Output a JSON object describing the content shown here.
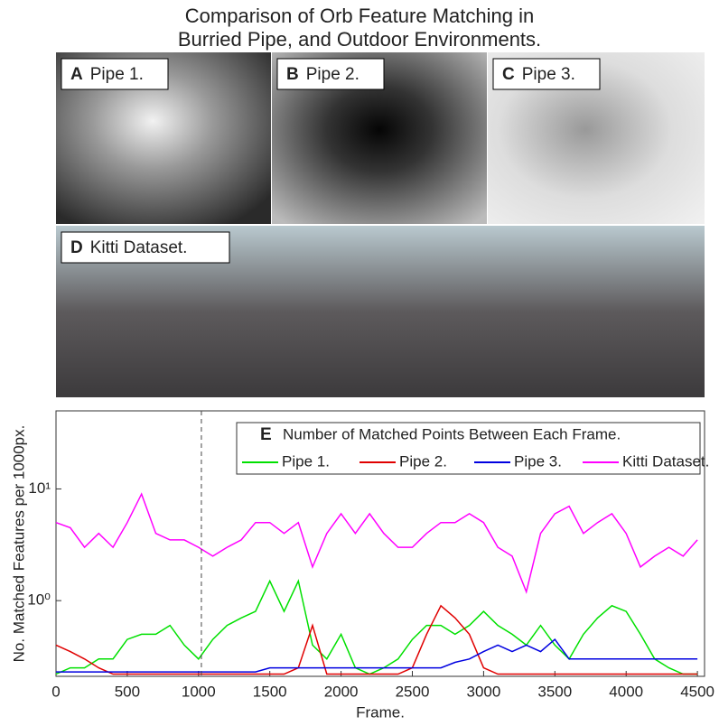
{
  "title": [
    "Comparison of Orb Feature Matching in",
    "Burried Pipe, and Outdoor Environments."
  ],
  "panels": [
    {
      "letter": "A",
      "label": "Pipe 1."
    },
    {
      "letter": "B",
      "label": "Pipe 2."
    },
    {
      "letter": "C",
      "label": "Pipe 3."
    },
    {
      "letter": "D",
      "label": "Kitti Dataset."
    }
  ],
  "chart_data": {
    "type": "line",
    "panel_letter": "E",
    "legend_title": "Number of Matched Points Between Each Frame.",
    "x_label": "Frame.",
    "y_label": "No. Matched Features per 1000px.",
    "x": [
      0,
      100,
      200,
      300,
      400,
      500,
      600,
      700,
      800,
      900,
      1000,
      1100,
      1200,
      1300,
      1400,
      1500,
      1600,
      1700,
      1800,
      1900,
      2000,
      2100,
      2200,
      2300,
      2400,
      2500,
      2600,
      2700,
      2800,
      2900,
      3000,
      3100,
      3200,
      3300,
      3400,
      3500,
      3600,
      3700,
      3800,
      3900,
      4000,
      4100,
      4200,
      4300,
      4400,
      4500
    ],
    "series": [
      {
        "name": "Pipe 1.",
        "color": "#00e000",
        "values": [
          0.22,
          0.25,
          0.25,
          0.3,
          0.3,
          0.45,
          0.5,
          0.5,
          0.6,
          0.4,
          0.3,
          0.45,
          0.6,
          0.7,
          0.8,
          1.5,
          0.8,
          1.5,
          0.4,
          0.3,
          0.5,
          0.25,
          0.22,
          0.25,
          0.3,
          0.45,
          0.6,
          0.6,
          0.5,
          0.6,
          0.8,
          0.6,
          0.5,
          0.4,
          0.6,
          0.4,
          0.3,
          0.5,
          0.7,
          0.9,
          0.8,
          0.5,
          0.3,
          0.25,
          0.22,
          0.22
        ]
      },
      {
        "name": "Pipe 2.",
        "color": "#e00000",
        "values": [
          0.4,
          0.35,
          0.3,
          0.25,
          0.22,
          0.22,
          0.22,
          0.22,
          0.22,
          0.22,
          0.22,
          0.22,
          0.22,
          0.22,
          0.22,
          0.22,
          0.22,
          0.25,
          0.6,
          0.22,
          0.22,
          0.22,
          0.22,
          0.22,
          0.22,
          0.25,
          0.5,
          0.9,
          0.7,
          0.5,
          0.25,
          0.22,
          0.22,
          0.22,
          0.22,
          0.22,
          0.22,
          0.22,
          0.22,
          0.22,
          0.22,
          0.22,
          0.22,
          0.22,
          0.22,
          0.22
        ]
      },
      {
        "name": "Pipe 3.",
        "color": "#0000e0",
        "values": [
          0.23,
          0.23,
          0.23,
          0.23,
          0.23,
          0.23,
          0.23,
          0.23,
          0.23,
          0.23,
          0.23,
          0.23,
          0.23,
          0.23,
          0.23,
          0.25,
          0.25,
          0.25,
          0.25,
          0.25,
          0.25,
          0.25,
          0.25,
          0.25,
          0.25,
          0.25,
          0.25,
          0.25,
          0.28,
          0.3,
          0.35,
          0.4,
          0.35,
          0.4,
          0.35,
          0.45,
          0.3,
          0.3,
          0.3,
          0.3,
          0.3,
          0.3,
          0.3,
          0.3,
          0.3,
          0.3
        ]
      },
      {
        "name": "Kitti Dataset.",
        "color": "#ff00ff",
        "values": [
          5,
          4.5,
          3,
          4,
          3,
          5,
          9,
          4,
          3.5,
          3.5,
          3,
          2.5,
          3,
          3.5,
          5,
          5,
          4,
          5,
          2,
          4,
          6,
          4,
          6,
          4,
          3,
          3,
          4,
          5,
          5,
          6,
          5,
          3,
          2.5,
          1.2,
          4,
          6,
          7,
          4,
          5,
          6,
          4,
          2,
          2.5,
          3,
          2.5,
          3.5
        ]
      }
    ],
    "marker_x": 1020,
    "xlim": [
      0,
      4550
    ],
    "ylim": [
      0.21,
      50
    ],
    "log_y": true,
    "xticks": [
      0,
      500,
      1000,
      1500,
      2000,
      2500,
      3000,
      3500,
      4000,
      4500
    ],
    "yticks": [
      {
        "value": 1,
        "label": "10⁰"
      },
      {
        "value": 10,
        "label": "10¹"
      }
    ]
  }
}
